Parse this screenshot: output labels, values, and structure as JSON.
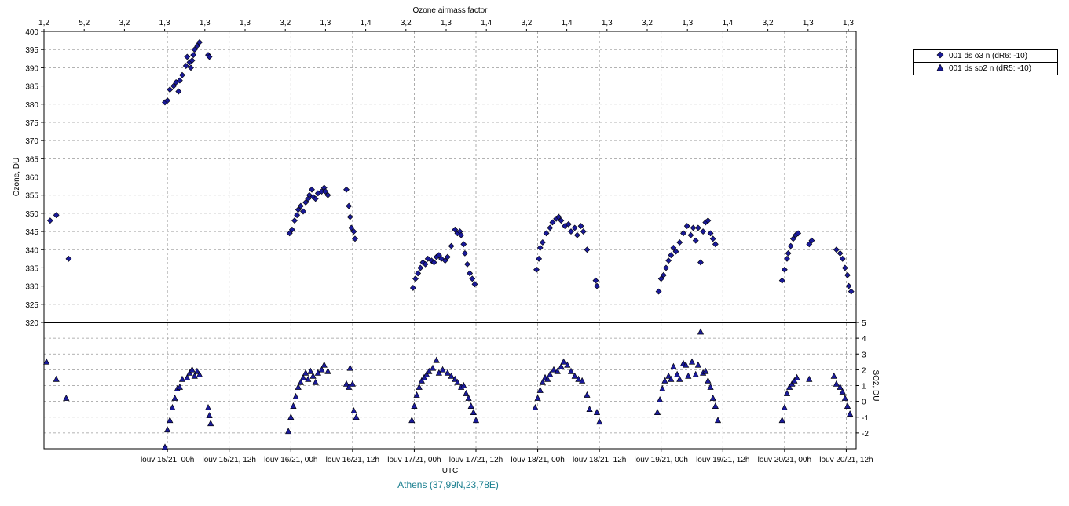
{
  "chart_data": [
    {
      "type": "scatter",
      "title": "",
      "top_axis_title": "Ozone airmass factor",
      "top_tick_labels": [
        "1,2",
        "5,2",
        "3,2",
        "1,3",
        "1,3",
        "1,3",
        "3,2",
        "1,3",
        "1,4",
        "3,2",
        "1,3",
        "1,4",
        "3,2",
        "1,4",
        "1,3",
        "3,2",
        "1,3",
        "1,4",
        "3,2",
        "1,3",
        "1,3"
      ],
      "ylabel": "Ozone, DU",
      "ylim": [
        320,
        400
      ],
      "y_ticks": [
        320,
        325,
        330,
        335,
        340,
        345,
        350,
        355,
        360,
        365,
        370,
        375,
        380,
        385,
        390,
        395,
        400
      ],
      "grid": true,
      "series": [
        {
          "name": "001 ds o3  n (dR6: -10)",
          "marker": "diamond",
          "color": "#1a1a9a",
          "points": [
            [
              14.05,
              348
            ],
            [
              14.1,
              349.5
            ],
            [
              14.2,
              337.5
            ],
            [
              14.98,
              380.5
            ],
            [
              15.0,
              381
            ],
            [
              15.02,
              384
            ],
            [
              15.05,
              385
            ],
            [
              15.07,
              386
            ],
            [
              15.09,
              383.5
            ],
            [
              15.1,
              386.5
            ],
            [
              15.12,
              388
            ],
            [
              15.15,
              390.5
            ],
            [
              15.16,
              393
            ],
            [
              15.18,
              391.5
            ],
            [
              15.19,
              390
            ],
            [
              15.2,
              392
            ],
            [
              15.21,
              393.5
            ],
            [
              15.22,
              395
            ],
            [
              15.24,
              396
            ],
            [
              15.26,
              397
            ],
            [
              15.33,
              393.5
            ],
            [
              15.34,
              393
            ],
            [
              15.99,
              344.5
            ],
            [
              16.01,
              345.5
            ],
            [
              16.03,
              348
            ],
            [
              16.05,
              349.5
            ],
            [
              16.06,
              351
            ],
            [
              16.08,
              352
            ],
            [
              16.1,
              350.5
            ],
            [
              16.12,
              353
            ],
            [
              16.14,
              354
            ],
            [
              16.15,
              355
            ],
            [
              16.17,
              356.5
            ],
            [
              16.18,
              354.5
            ],
            [
              16.2,
              354
            ],
            [
              16.22,
              355.5
            ],
            [
              16.25,
              356
            ],
            [
              16.27,
              357
            ],
            [
              16.28,
              356
            ],
            [
              16.3,
              355
            ],
            [
              16.45,
              356.5
            ],
            [
              16.47,
              352
            ],
            [
              16.48,
              349
            ],
            [
              16.49,
              346
            ],
            [
              16.51,
              345
            ],
            [
              16.52,
              343
            ],
            [
              16.99,
              329.5
            ],
            [
              17.01,
              332
            ],
            [
              17.03,
              333.5
            ],
            [
              17.05,
              335
            ],
            [
              17.07,
              336.5
            ],
            [
              17.09,
              336
            ],
            [
              17.11,
              337.5
            ],
            [
              17.14,
              337
            ],
            [
              17.16,
              336.5
            ],
            [
              17.18,
              338
            ],
            [
              17.2,
              338.5
            ],
            [
              17.22,
              337.5
            ],
            [
              17.25,
              337
            ],
            [
              17.27,
              338
            ],
            [
              17.3,
              341
            ],
            [
              17.33,
              345.5
            ],
            [
              17.35,
              344.5
            ],
            [
              17.37,
              345
            ],
            [
              17.38,
              344
            ],
            [
              17.4,
              341.5
            ],
            [
              17.41,
              339
            ],
            [
              17.43,
              336
            ],
            [
              17.45,
              333.5
            ],
            [
              17.47,
              332
            ],
            [
              17.49,
              330.5
            ],
            [
              17.99,
              334.5
            ],
            [
              18.01,
              337.5
            ],
            [
              18.02,
              340.5
            ],
            [
              18.04,
              342
            ],
            [
              18.07,
              344.5
            ],
            [
              18.1,
              346
            ],
            [
              18.12,
              347.5
            ],
            [
              18.15,
              348.5
            ],
            [
              18.17,
              349
            ],
            [
              18.19,
              348
            ],
            [
              18.22,
              346.5
            ],
            [
              18.25,
              347
            ],
            [
              18.27,
              345
            ],
            [
              18.3,
              346
            ],
            [
              18.32,
              344
            ],
            [
              18.35,
              346.5
            ],
            [
              18.37,
              345
            ],
            [
              18.4,
              340
            ],
            [
              18.47,
              331.5
            ],
            [
              18.48,
              330
            ],
            [
              18.98,
              328.5
            ],
            [
              19.0,
              332
            ],
            [
              19.02,
              333
            ],
            [
              19.04,
              335
            ],
            [
              19.06,
              337
            ],
            [
              19.08,
              338.5
            ],
            [
              19.1,
              340.5
            ],
            [
              19.12,
              339.5
            ],
            [
              19.15,
              342
            ],
            [
              19.18,
              344.5
            ],
            [
              19.21,
              346.5
            ],
            [
              19.24,
              344
            ],
            [
              19.26,
              346
            ],
            [
              19.28,
              342.5
            ],
            [
              19.3,
              346
            ],
            [
              19.32,
              336.5
            ],
            [
              19.34,
              345
            ],
            [
              19.36,
              347.5
            ],
            [
              19.38,
              348
            ],
            [
              19.4,
              344.5
            ],
            [
              19.42,
              343
            ],
            [
              19.44,
              341.5
            ],
            [
              19.98,
              331.5
            ],
            [
              20.0,
              334.5
            ],
            [
              20.02,
              337.5
            ],
            [
              20.03,
              339
            ],
            [
              20.05,
              341
            ],
            [
              20.07,
              343
            ],
            [
              20.09,
              344
            ],
            [
              20.11,
              344.5
            ],
            [
              20.2,
              341.5
            ],
            [
              20.22,
              342.5
            ],
            [
              20.42,
              340
            ],
            [
              20.45,
              339
            ],
            [
              20.47,
              337.5
            ],
            [
              20.49,
              335
            ],
            [
              20.51,
              333
            ],
            [
              20.52,
              330
            ],
            [
              20.54,
              328.5
            ]
          ]
        }
      ]
    },
    {
      "type": "scatter",
      "title": "",
      "ylabel": "SO2, DU",
      "ylim": [
        -3,
        5
      ],
      "y_ticks": [
        -2,
        -1,
        0,
        1,
        2,
        3,
        4,
        5
      ],
      "grid": true,
      "xlabel": "UTC",
      "x_tick_labels": [
        "louv 15/21, 00h",
        "louv 15/21, 12h",
        "louv 16/21, 00h",
        "louv 16/21, 12h",
        "louv 17/21, 00h",
        "louv 17/21, 12h",
        "louv 18/21, 00h",
        "louv 18/21, 12h",
        "louv 19/21, 00h",
        "louv 19/21, 12h",
        "louv 20/21, 00h",
        "louv 20/21, 12h"
      ],
      "series": [
        {
          "name": "001 ds so2  n (dR5: -10)",
          "marker": "triangle",
          "color": "#1a1a9a",
          "points": [
            [
              14.02,
              2.5
            ],
            [
              14.1,
              1.4
            ],
            [
              14.18,
              0.2
            ],
            [
              14.98,
              -2.9
            ],
            [
              15.0,
              -1.8
            ],
            [
              15.02,
              -1.2
            ],
            [
              15.04,
              -0.4
            ],
            [
              15.06,
              0.2
            ],
            [
              15.08,
              0.8
            ],
            [
              15.1,
              0.9
            ],
            [
              15.12,
              1.4
            ],
            [
              15.16,
              1.5
            ],
            [
              15.18,
              1.8
            ],
            [
              15.2,
              2.0
            ],
            [
              15.22,
              1.6
            ],
            [
              15.24,
              1.9
            ],
            [
              15.26,
              1.7
            ],
            [
              15.33,
              -0.4
            ],
            [
              15.34,
              -0.9
            ],
            [
              15.35,
              -1.4
            ],
            [
              15.98,
              -1.9
            ],
            [
              16.0,
              -1.0
            ],
            [
              16.02,
              -0.3
            ],
            [
              16.04,
              0.3
            ],
            [
              16.06,
              0.9
            ],
            [
              16.08,
              1.2
            ],
            [
              16.1,
              1.5
            ],
            [
              16.12,
              1.8
            ],
            [
              16.14,
              1.4
            ],
            [
              16.16,
              1.9
            ],
            [
              16.18,
              1.6
            ],
            [
              16.2,
              1.2
            ],
            [
              16.22,
              1.8
            ],
            [
              16.25,
              2.0
            ],
            [
              16.27,
              2.3
            ],
            [
              16.3,
              1.9
            ],
            [
              16.45,
              1.1
            ],
            [
              16.47,
              0.9
            ],
            [
              16.48,
              2.1
            ],
            [
              16.5,
              1.1
            ],
            [
              16.51,
              -0.6
            ],
            [
              16.53,
              -1.0
            ],
            [
              16.98,
              -1.2
            ],
            [
              17.0,
              -0.3
            ],
            [
              17.02,
              0.4
            ],
            [
              17.04,
              0.9
            ],
            [
              17.06,
              1.3
            ],
            [
              17.08,
              1.5
            ],
            [
              17.1,
              1.7
            ],
            [
              17.12,
              1.9
            ],
            [
              17.15,
              2.1
            ],
            [
              17.18,
              2.6
            ],
            [
              17.2,
              1.8
            ],
            [
              17.23,
              2.0
            ],
            [
              17.27,
              1.8
            ],
            [
              17.3,
              1.6
            ],
            [
              17.33,
              1.4
            ],
            [
              17.35,
              1.2
            ],
            [
              17.38,
              0.9
            ],
            [
              17.4,
              1.0
            ],
            [
              17.42,
              0.5
            ],
            [
              17.44,
              0.2
            ],
            [
              17.46,
              -0.3
            ],
            [
              17.48,
              -0.7
            ],
            [
              17.5,
              -1.2
            ],
            [
              17.98,
              -0.4
            ],
            [
              18.0,
              0.2
            ],
            [
              18.02,
              0.7
            ],
            [
              18.04,
              1.2
            ],
            [
              18.06,
              1.5
            ],
            [
              18.08,
              1.4
            ],
            [
              18.1,
              1.7
            ],
            [
              18.13,
              2.0
            ],
            [
              18.16,
              1.9
            ],
            [
              18.19,
              2.2
            ],
            [
              18.21,
              2.5
            ],
            [
              18.24,
              2.3
            ],
            [
              18.27,
              1.9
            ],
            [
              18.3,
              1.6
            ],
            [
              18.33,
              1.4
            ],
            [
              18.36,
              1.3
            ],
            [
              18.4,
              0.4
            ],
            [
              18.42,
              -0.5
            ],
            [
              18.48,
              -0.7
            ],
            [
              18.5,
              -1.3
            ],
            [
              18.97,
              -0.7
            ],
            [
              18.99,
              0.1
            ],
            [
              19.01,
              0.8
            ],
            [
              19.03,
              1.3
            ],
            [
              19.06,
              1.6
            ],
            [
              19.08,
              1.4
            ],
            [
              19.1,
              2.2
            ],
            [
              19.13,
              1.7
            ],
            [
              19.15,
              1.4
            ],
            [
              19.18,
              2.4
            ],
            [
              19.2,
              2.3
            ],
            [
              19.22,
              1.6
            ],
            [
              19.25,
              2.5
            ],
            [
              19.28,
              1.7
            ],
            [
              19.3,
              2.3
            ],
            [
              19.32,
              4.4
            ],
            [
              19.34,
              1.8
            ],
            [
              19.36,
              1.9
            ],
            [
              19.38,
              1.3
            ],
            [
              19.4,
              0.9
            ],
            [
              19.42,
              0.2
            ],
            [
              19.44,
              -0.3
            ],
            [
              19.46,
              -1.2
            ],
            [
              19.98,
              -1.2
            ],
            [
              20.0,
              -0.4
            ],
            [
              20.02,
              0.5
            ],
            [
              20.04,
              0.9
            ],
            [
              20.06,
              1.1
            ],
            [
              20.08,
              1.3
            ],
            [
              20.1,
              1.5
            ],
            [
              20.2,
              1.4
            ],
            [
              20.4,
              1.6
            ],
            [
              20.42,
              1.1
            ],
            [
              20.45,
              0.9
            ],
            [
              20.47,
              0.6
            ],
            [
              20.49,
              0.2
            ],
            [
              20.51,
              -0.3
            ],
            [
              20.53,
              -0.8
            ]
          ]
        }
      ]
    }
  ],
  "legend": [
    {
      "marker": "diamond",
      "label": "001 ds o3  n (dR6: -10)"
    },
    {
      "marker": "triangle",
      "label": "001 ds so2  n (dR5: -10)"
    }
  ],
  "location": "Athens (37,99N,23,78E)"
}
